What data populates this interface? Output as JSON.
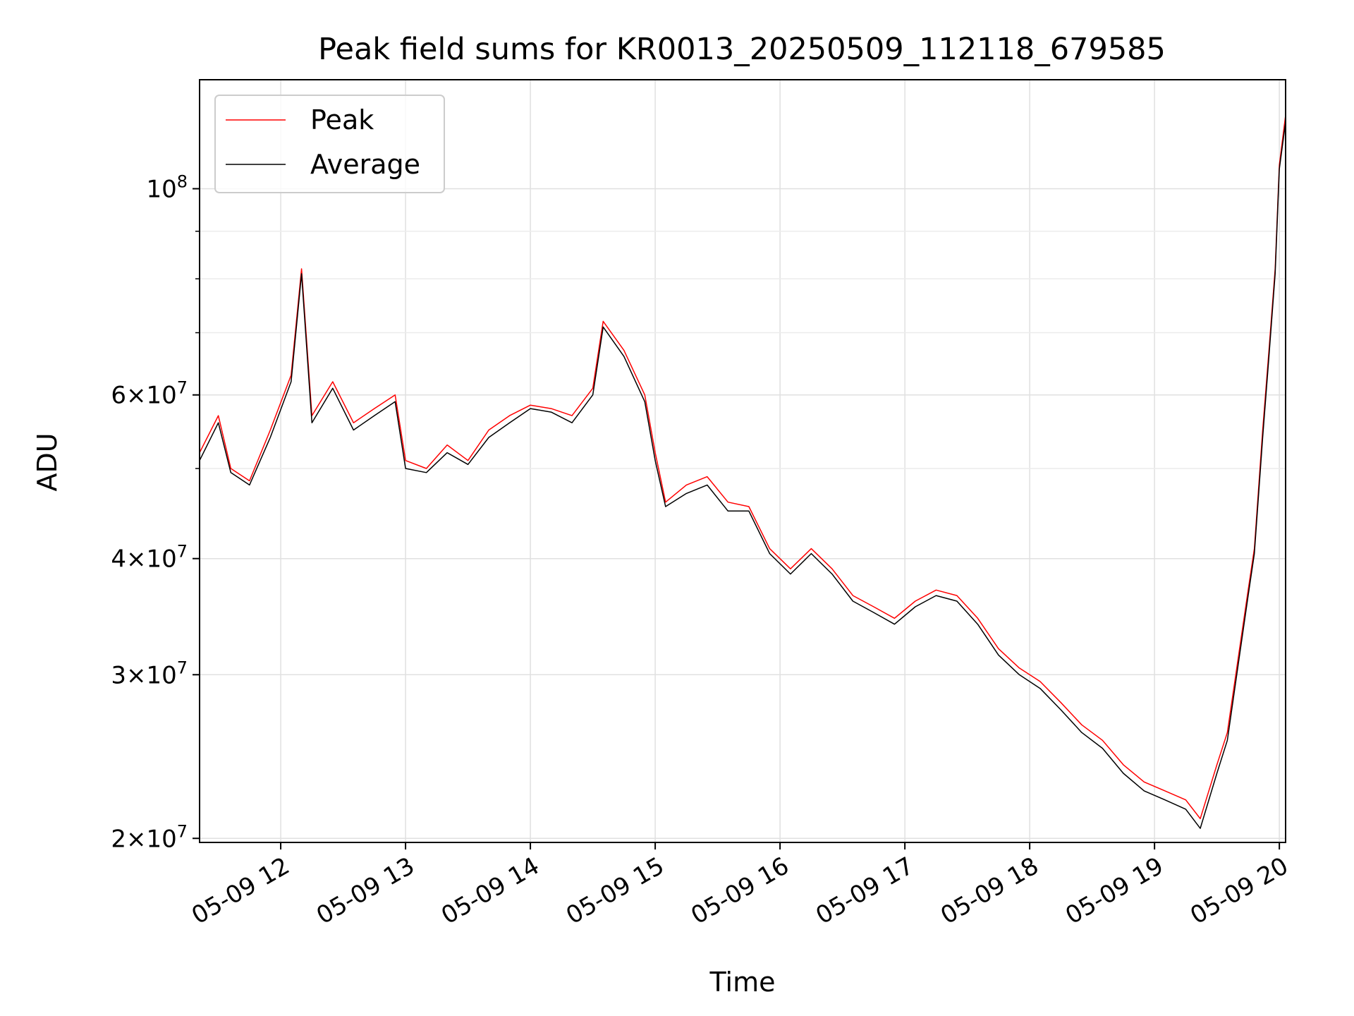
{
  "chart_data": {
    "type": "line",
    "title": "Peak field sums for KR0013_20250509_112118_679585",
    "xlabel": "Time",
    "ylabel": "ADU",
    "yscale": "log",
    "xlim": [
      "2025-05-09 11:21",
      "2025-05-09 20:03"
    ],
    "ylim": [
      19800000,
      131000000
    ],
    "x_ticks": [
      "05-09 12",
      "05-09 13",
      "05-09 14",
      "05-09 15",
      "05-09 16",
      "05-09 17",
      "05-09 18",
      "05-09 19",
      "05-09 20"
    ],
    "y_ticks": [
      {
        "value": 20000000,
        "mantissa": "2",
        "exp": "7"
      },
      {
        "value": 30000000,
        "mantissa": "3",
        "exp": "7"
      },
      {
        "value": 40000000,
        "mantissa": "4",
        "exp": "7"
      },
      {
        "value": 60000000,
        "mantissa": "6",
        "exp": "7"
      },
      {
        "value": 100000000,
        "mantissa": "",
        "exp": "8"
      }
    ],
    "grid": true,
    "legend_position": "top-left",
    "series": [
      {
        "name": "Peak",
        "color": "#ff0000",
        "points": [
          [
            "11:21",
            52000000
          ],
          [
            "11:30",
            57000000
          ],
          [
            "11:36",
            50000000
          ],
          [
            "11:45",
            48500000
          ],
          [
            "11:55",
            55000000
          ],
          [
            "12:05",
            63000000
          ],
          [
            "12:10",
            82000000
          ],
          [
            "12:15",
            57000000
          ],
          [
            "12:25",
            62000000
          ],
          [
            "12:35",
            56000000
          ],
          [
            "12:45",
            58000000
          ],
          [
            "12:55",
            60000000
          ],
          [
            "13:00",
            51000000
          ],
          [
            "13:10",
            50000000
          ],
          [
            "13:20",
            53000000
          ],
          [
            "13:30",
            51000000
          ],
          [
            "13:40",
            55000000
          ],
          [
            "13:50",
            57000000
          ],
          [
            "14:00",
            58500000
          ],
          [
            "14:10",
            58000000
          ],
          [
            "14:20",
            57000000
          ],
          [
            "14:30",
            61000000
          ],
          [
            "14:35",
            72000000
          ],
          [
            "14:45",
            67000000
          ],
          [
            "14:55",
            60000000
          ],
          [
            "15:00",
            52000000
          ],
          [
            "15:05",
            46000000
          ],
          [
            "15:15",
            48000000
          ],
          [
            "15:25",
            49000000
          ],
          [
            "15:35",
            46000000
          ],
          [
            "15:45",
            45500000
          ],
          [
            "15:55",
            41000000
          ],
          [
            "16:05",
            39000000
          ],
          [
            "16:15",
            41000000
          ],
          [
            "16:25",
            39000000
          ],
          [
            "16:35",
            36500000
          ],
          [
            "16:45",
            35500000
          ],
          [
            "16:55",
            34500000
          ],
          [
            "17:05",
            36000000
          ],
          [
            "17:15",
            37000000
          ],
          [
            "17:25",
            36500000
          ],
          [
            "17:35",
            34500000
          ],
          [
            "17:45",
            32000000
          ],
          [
            "17:55",
            30500000
          ],
          [
            "18:05",
            29500000
          ],
          [
            "18:15",
            28000000
          ],
          [
            "18:25",
            26500000
          ],
          [
            "18:35",
            25500000
          ],
          [
            "18:45",
            24000000
          ],
          [
            "18:55",
            23000000
          ],
          [
            "19:05",
            22500000
          ],
          [
            "19:15",
            22000000
          ],
          [
            "19:22",
            21000000
          ],
          [
            "19:30",
            24000000
          ],
          [
            "19:35",
            26000000
          ],
          [
            "19:40",
            31000000
          ],
          [
            "19:45",
            37000000
          ],
          [
            "19:48",
            41000000
          ],
          [
            "19:52",
            55000000
          ],
          [
            "19:55",
            67000000
          ],
          [
            "19:58",
            82000000
          ],
          [
            "20:00",
            106000000
          ],
          [
            "20:03",
            120000000
          ]
        ]
      },
      {
        "name": "Average",
        "color": "#000000",
        "points": [
          [
            "11:21",
            51000000
          ],
          [
            "11:30",
            56000000
          ],
          [
            "11:36",
            49500000
          ],
          [
            "11:45",
            48000000
          ],
          [
            "11:55",
            54000000
          ],
          [
            "12:05",
            62000000
          ],
          [
            "12:10",
            81000000
          ],
          [
            "12:15",
            56000000
          ],
          [
            "12:25",
            61000000
          ],
          [
            "12:35",
            55000000
          ],
          [
            "12:45",
            57000000
          ],
          [
            "12:55",
            59000000
          ],
          [
            "13:00",
            50000000
          ],
          [
            "13:10",
            49500000
          ],
          [
            "13:20",
            52000000
          ],
          [
            "13:30",
            50500000
          ],
          [
            "13:40",
            54000000
          ],
          [
            "13:50",
            56000000
          ],
          [
            "14:00",
            58000000
          ],
          [
            "14:10",
            57500000
          ],
          [
            "14:20",
            56000000
          ],
          [
            "14:30",
            60000000
          ],
          [
            "14:35",
            71000000
          ],
          [
            "14:45",
            66000000
          ],
          [
            "14:55",
            59000000
          ],
          [
            "15:00",
            51000000
          ],
          [
            "15:05",
            45500000
          ],
          [
            "15:15",
            47000000
          ],
          [
            "15:25",
            48000000
          ],
          [
            "15:35",
            45000000
          ],
          [
            "15:45",
            45000000
          ],
          [
            "15:55",
            40500000
          ],
          [
            "16:05",
            38500000
          ],
          [
            "16:15",
            40500000
          ],
          [
            "16:25",
            38500000
          ],
          [
            "16:35",
            36000000
          ],
          [
            "16:45",
            35000000
          ],
          [
            "16:55",
            34000000
          ],
          [
            "17:05",
            35500000
          ],
          [
            "17:15",
            36500000
          ],
          [
            "17:25",
            36000000
          ],
          [
            "17:35",
            34000000
          ],
          [
            "17:45",
            31500000
          ],
          [
            "17:55",
            30000000
          ],
          [
            "18:05",
            29000000
          ],
          [
            "18:15",
            27500000
          ],
          [
            "18:25",
            26000000
          ],
          [
            "18:35",
            25000000
          ],
          [
            "18:45",
            23500000
          ],
          [
            "18:55",
            22500000
          ],
          [
            "19:05",
            22000000
          ],
          [
            "19:15",
            21500000
          ],
          [
            "19:22",
            20500000
          ],
          [
            "19:30",
            23500000
          ],
          [
            "19:35",
            25500000
          ],
          [
            "19:40",
            30500000
          ],
          [
            "19:45",
            36500000
          ],
          [
            "19:48",
            40500000
          ],
          [
            "19:52",
            54000000
          ],
          [
            "19:55",
            66000000
          ],
          [
            "19:58",
            81000000
          ],
          [
            "20:00",
            105000000
          ],
          [
            "20:03",
            118000000
          ]
        ]
      }
    ]
  }
}
